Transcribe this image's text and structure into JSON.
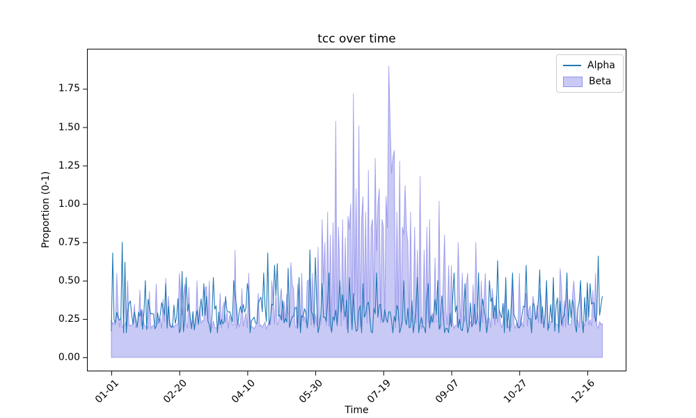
{
  "chart_data": {
    "type": "line",
    "title": "tcc over time",
    "xlabel": "Time",
    "ylabel": "Proportion (0-1)",
    "x_tick_labels": [
      "01-01",
      "02-20",
      "04-10",
      "05-30",
      "07-19",
      "09-07",
      "10-27",
      "12-16"
    ],
    "x_tick_days": [
      0,
      50,
      100,
      150,
      200,
      250,
      300,
      350
    ],
    "y_tick_labels": [
      "0.00",
      "0.25",
      "0.50",
      "0.75",
      "1.00",
      "1.25",
      "1.50",
      "1.75"
    ],
    "y_tick_values": [
      0,
      0.25,
      0.5,
      0.75,
      1.0,
      1.25,
      1.5,
      1.75
    ],
    "xlim_days": [
      -17.9,
      378.7
    ],
    "ylim": [
      -0.091,
      2.011
    ],
    "n_points": 362,
    "seed": 1337,
    "grid": false,
    "legend": {
      "position": "upper right",
      "border_color": "#cccccc"
    },
    "series": [
      {
        "name": "Alpha",
        "plot": "line",
        "color": "#1f77b4",
        "line_width": 1.1,
        "gen": {
          "mean": 0.27,
          "noise": 0.16,
          "min": 0.16,
          "extra_prob": 0.05,
          "extra": 0.12
        },
        "peaks": {
          "1": 0.68,
          "8": 0.75,
          "10": 0.62,
          "25": 0.5,
          "40": 0.48,
          "52": 0.56,
          "55": 0.52,
          "68": 0.48,
          "75": 0.52,
          "90": 0.5,
          "100": 0.48,
          "112": 0.55,
          "115": 0.68,
          "120": 0.6,
          "122": 0.61,
          "130": 0.58,
          "138": 0.52,
          "146": 0.7,
          "150": 0.65,
          "155": 0.48,
          "160": 0.55,
          "168": 0.5,
          "175": 0.52,
          "185": 0.48,
          "195": 0.55,
          "207": 0.16,
          "215": 0.5,
          "225": 0.52,
          "233": 0.48,
          "240": 0.5,
          "252": 0.55,
          "260": 0.48,
          "270": 0.55,
          "278": 0.5,
          "284": 0.63,
          "290": 0.52,
          "295": 0.55,
          "305": 0.6,
          "315": 0.57,
          "320": 0.5,
          "325": 0.52,
          "335": 0.55,
          "345": 0.5,
          "352": 0.48,
          "358": 0.66
        }
      },
      {
        "name": "Beta",
        "plot": "area",
        "face_color": "rgba(90,90,225,0.33)",
        "edge_color": "rgba(90,90,225,0.5)",
        "baseline": 0,
        "gen": {
          "base": 0.185,
          "base_noise": 0.055,
          "spike_prob": 0.5,
          "spike_pow": 2.5,
          "env": 0.3,
          "burst": {
            "start": 148,
            "end": 258,
            "center": 203,
            "width": 26,
            "extra": 1.1
          }
        },
        "peaks": {
          "4": 0.55,
          "12": 0.5,
          "21": 0.44,
          "33": 0.48,
          "42": 0.4,
          "50": 0.55,
          "57": 0.46,
          "63": 0.5,
          "72": 0.5,
          "80": 0.42,
          "91": 0.7,
          "96": 0.45,
          "101": 0.55,
          "108": 0.42,
          "118": 0.5,
          "125": 0.45,
          "132": 0.62,
          "137": 0.48,
          "140": 0.55,
          "145": 0.5,
          "148": 0.55,
          "152": 0.72,
          "155": 0.9,
          "157": 0.75,
          "159": 0.95,
          "161": 0.8,
          "163": 0.88,
          "165": 1.54,
          "167": 0.85,
          "170": 0.9,
          "172": 0.78,
          "174": 0.92,
          "176": 1.0,
          "178": 1.72,
          "180": 1.1,
          "182": 1.51,
          "184": 0.9,
          "185": 1.05,
          "187": 0.95,
          "189": 1.22,
          "191": 0.85,
          "192": 0.9,
          "194": 1.3,
          "196": 1.0,
          "197": 1.1,
          "199": 0.9,
          "200": 0.85,
          "202": 1.05,
          "204": 1.9,
          "206": 1.2,
          "208": 1.35,
          "210": 0.95,
          "212": 1.28,
          "214": 0.85,
          "215": 0.8,
          "218": 0.75,
          "220": 0.95,
          "223": 0.85,
          "225": 0.7,
          "227": 1.18,
          "230": 0.7,
          "232": 0.85,
          "234": 0.9,
          "238": 0.65,
          "241": 1.02,
          "245": 0.8,
          "248": 0.6,
          "250": 0.6,
          "255": 0.75,
          "258": 0.55,
          "262": 0.55,
          "268": 0.75,
          "272": 0.5,
          "275": 0.55,
          "280": 0.45,
          "283": 0.4,
          "290": 0.45,
          "295": 0.5,
          "300": 0.55,
          "305": 0.42,
          "310": 0.4,
          "315": 0.45,
          "320": 0.45,
          "325": 0.5,
          "330": 0.58,
          "335": 0.45,
          "340": 0.5,
          "345": 0.42,
          "350": 0.45,
          "356": 0.55
        }
      }
    ]
  }
}
